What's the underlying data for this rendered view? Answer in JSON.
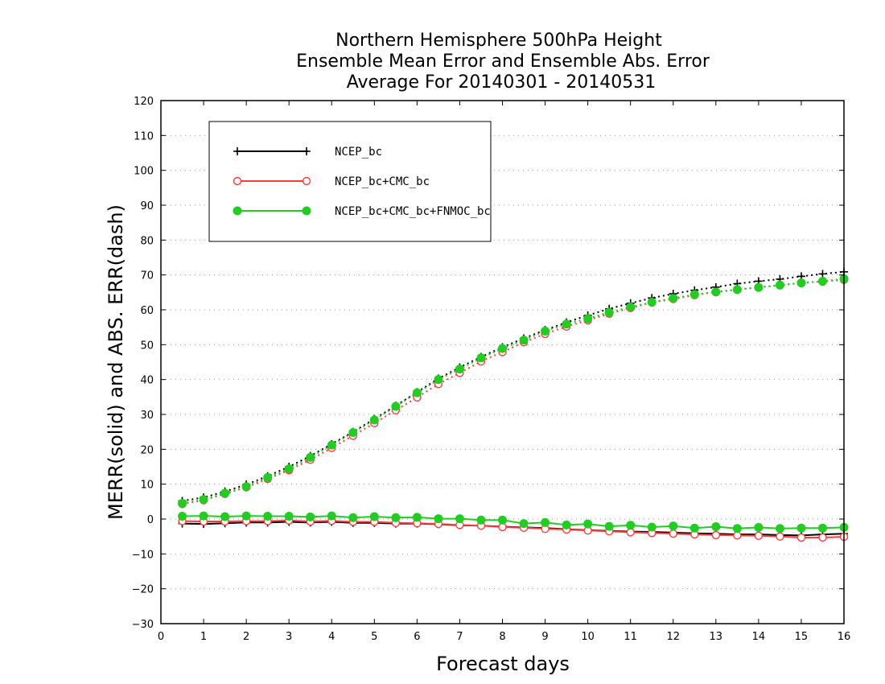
{
  "chart_data": {
    "type": "line",
    "title": [
      "Northern Hemisphere 500hPa Height",
      "Ensemble Mean Error and Ensemble Abs. Error",
      "Average For 20140301 - 20140531"
    ],
    "xlabel": "Forecast days",
    "ylabel": "MERR(solid) and ABS. ERR(dash)",
    "xlim": [
      0,
      16
    ],
    "ylim": [
      -30,
      120
    ],
    "xticks": [
      0,
      1,
      2,
      3,
      4,
      5,
      6,
      7,
      8,
      9,
      10,
      11,
      12,
      13,
      14,
      15,
      16
    ],
    "yticks": [
      -30,
      -20,
      -10,
      0,
      10,
      20,
      30,
      40,
      50,
      60,
      70,
      80,
      90,
      100,
      110,
      120
    ],
    "grid": true,
    "legend_position": "top-left",
    "x": [
      0.5,
      1,
      1.5,
      2,
      2.5,
      3,
      3.5,
      4,
      4.5,
      5,
      5.5,
      6,
      6.5,
      7,
      7.5,
      8,
      8.5,
      9,
      9.5,
      10,
      10.5,
      11,
      11.5,
      12,
      12.5,
      13,
      13.5,
      14,
      14.5,
      15,
      15.5,
      16
    ],
    "series": [
      {
        "name": "NCEP_bc",
        "color": "#000000",
        "marker": "plus",
        "mean_error": [
          -1.3,
          -1.4,
          -1.2,
          -1.0,
          -1.0,
          -0.8,
          -1.0,
          -0.8,
          -1.1,
          -1.1,
          -1.3,
          -1.3,
          -1.5,
          -1.8,
          -1.9,
          -2.2,
          -2.4,
          -2.6,
          -2.9,
          -3.2,
          -3.4,
          -3.6,
          -3.7,
          -3.9,
          -4.1,
          -4.2,
          -4.4,
          -4.4,
          -4.6,
          -4.7,
          -4.4,
          -4.2
        ],
        "abs_error": [
          5.2,
          6.2,
          7.9,
          9.9,
          12.3,
          15.0,
          18.1,
          21.5,
          25.0,
          28.7,
          32.5,
          36.4,
          40.3,
          43.5,
          46.5,
          49.3,
          51.8,
          54.2,
          56.4,
          58.4,
          60.3,
          61.9,
          63.4,
          64.6,
          65.6,
          66.5,
          67.5,
          68.2,
          68.8,
          69.6,
          70.3,
          70.9
        ]
      },
      {
        "name": "NCEP_bc+CMC_bc",
        "color": "#ff3b3b",
        "marker": "open-circle",
        "mean_error": [
          -0.6,
          -0.7,
          -0.7,
          -0.6,
          -0.6,
          -0.4,
          -0.7,
          -0.5,
          -0.8,
          -0.8,
          -1.1,
          -1.2,
          -1.4,
          -1.7,
          -1.9,
          -2.3,
          -2.5,
          -2.8,
          -3.0,
          -3.3,
          -3.5,
          -3.8,
          -4.0,
          -4.2,
          -4.4,
          -4.6,
          -4.7,
          -4.8,
          -5.0,
          -5.3,
          -5.3,
          -5.1
        ],
        "abs_error": [
          4.3,
          5.4,
          7.2,
          9.1,
          11.5,
          14.0,
          17.0,
          20.4,
          23.9,
          27.5,
          31.2,
          34.9,
          38.7,
          41.9,
          45.2,
          47.9,
          50.7,
          53.1,
          55.2,
          57.0,
          58.9,
          60.5,
          62.1,
          63.1,
          64.2,
          65.1,
          65.8,
          66.5,
          67.0,
          67.8,
          68.1,
          68.6
        ]
      },
      {
        "name": "NCEP_bc+CMC_bc+FNMOC_bc",
        "color": "#22cc22",
        "marker": "filled-circle",
        "mean_error": [
          0.8,
          0.9,
          0.7,
          0.9,
          0.8,
          0.8,
          0.6,
          0.9,
          0.4,
          0.7,
          0.4,
          0.5,
          0.1,
          0.1,
          -0.3,
          -0.3,
          -1.3,
          -1.0,
          -1.7,
          -1.4,
          -2.1,
          -1.8,
          -2.3,
          -2.0,
          -2.6,
          -2.2,
          -2.7,
          -2.4,
          -2.7,
          -2.6,
          -2.6,
          -2.4
        ],
        "abs_error": [
          4.5,
          5.6,
          7.4,
          9.3,
          11.9,
          14.4,
          17.7,
          21.2,
          24.8,
          28.4,
          32.3,
          36.2,
          40.0,
          43.0,
          46.2,
          48.9,
          51.3,
          53.9,
          55.9,
          57.5,
          59.3,
          60.8,
          62.2,
          63.3,
          64.4,
          65.1,
          65.8,
          66.4,
          67.1,
          67.7,
          68.2,
          68.9
        ]
      }
    ]
  }
}
